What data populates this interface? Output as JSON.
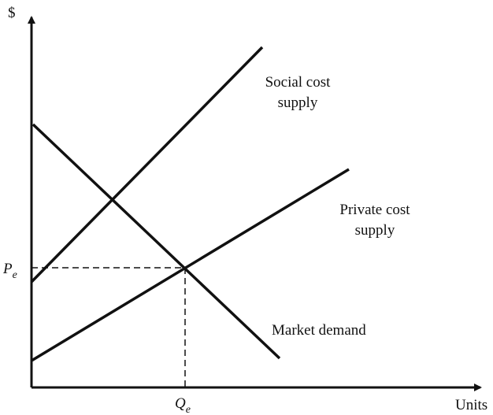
{
  "axes": {
    "y_label": "$",
    "x_label": "Units"
  },
  "curves": [
    {
      "label": [
        "Social cost",
        "supply"
      ]
    },
    {
      "label": [
        "Private cost",
        "supply"
      ]
    },
    {
      "label": [
        "Market demand"
      ]
    }
  ],
  "equilibrium": {
    "price": {
      "main": "P",
      "sub": "e"
    },
    "quantity": {
      "main": "Q",
      "sub": "e"
    }
  }
}
